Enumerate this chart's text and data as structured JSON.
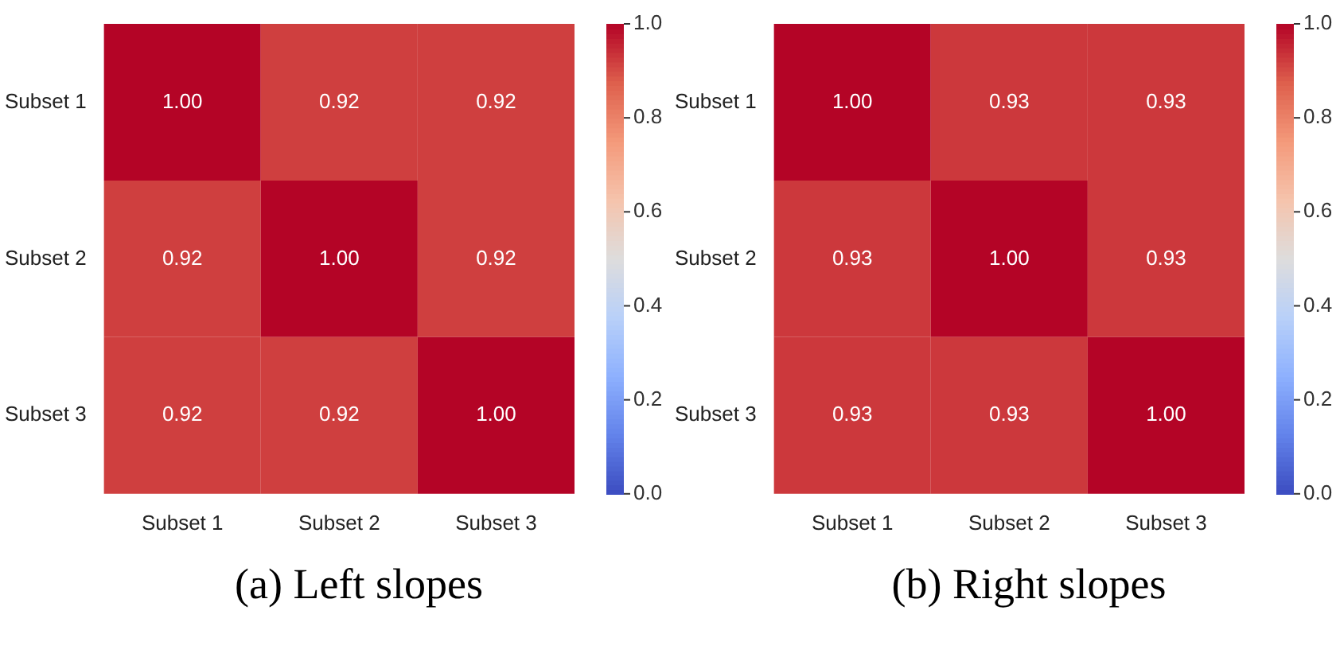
{
  "chart_data": [
    {
      "type": "heatmap",
      "categories": [
        "Subset 1",
        "Subset 2",
        "Subset 3"
      ],
      "y_categories": [
        "Subset 1",
        "Subset 2",
        "Subset 3"
      ],
      "cells": [
        [
          1.0,
          0.92,
          0.92
        ],
        [
          0.92,
          1.0,
          0.92
        ],
        [
          0.92,
          0.92,
          1.0
        ]
      ],
      "cell_labels": [
        [
          "1.00",
          "0.92",
          "0.92"
        ],
        [
          "0.92",
          "1.00",
          "0.92"
        ],
        [
          "0.92",
          "0.92",
          "1.00"
        ]
      ],
      "clim": [
        0.0,
        1.0
      ],
      "cticks": [
        {
          "value": 0,
          "label": "0.0"
        },
        {
          "value": 0.2,
          "label": "0.2"
        },
        {
          "value": 0.4,
          "label": "0.4"
        },
        {
          "value": 0.6,
          "label": "0.6"
        },
        {
          "value": 0.8,
          "label": "0.8"
        },
        {
          "value": 1,
          "label": "1.0"
        }
      ],
      "annotations": [
        "(a) Left slopes"
      ]
    },
    {
      "type": "heatmap",
      "categories": [
        "Subset 1",
        "Subset 2",
        "Subset 3"
      ],
      "y_categories": [
        "Subset 1",
        "Subset 2",
        "Subset 3"
      ],
      "cells": [
        [
          1.0,
          0.93,
          0.93
        ],
        [
          0.93,
          1.0,
          0.93
        ],
        [
          0.93,
          0.93,
          1.0
        ]
      ],
      "cell_labels": [
        [
          "1.00",
          "0.93",
          "0.93"
        ],
        [
          "0.93",
          "1.00",
          "0.93"
        ],
        [
          "0.93",
          "0.93",
          "1.00"
        ]
      ],
      "clim": [
        0.0,
        1.0
      ],
      "cticks": [
        {
          "value": 0,
          "label": "0.0"
        },
        {
          "value": 0.2,
          "label": "0.2"
        },
        {
          "value": 0.4,
          "label": "0.4"
        },
        {
          "value": 0.6,
          "label": "0.6"
        },
        {
          "value": 0.8,
          "label": "0.8"
        },
        {
          "value": 1,
          "label": "1.0"
        }
      ],
      "annotations": [
        "(b) Right slopes"
      ]
    }
  ]
}
